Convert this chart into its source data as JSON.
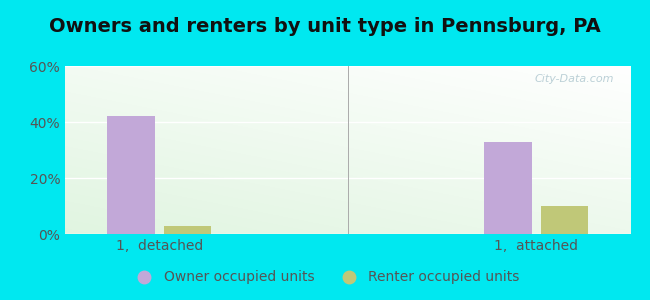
{
  "title": "Owners and renters by unit type in Pennsburg, PA",
  "categories": [
    "1,  detached",
    "1,  attached"
  ],
  "owner_values": [
    42,
    33
  ],
  "renter_values": [
    3,
    10
  ],
  "owner_color": "#c2a8d8",
  "renter_color": "#c0c878",
  "bar_width": 0.25,
  "ylim": [
    0,
    60
  ],
  "yticks": [
    0,
    20,
    40,
    60
  ],
  "ytick_labels": [
    "0%",
    "20%",
    "40%",
    "60%"
  ],
  "legend_owner": "Owner occupied units",
  "legend_renter": "Renter occupied units",
  "background_outer": "#00e8f0",
  "watermark": "City-Data.com",
  "title_fontsize": 14,
  "tick_fontsize": 10,
  "legend_fontsize": 10,
  "group_positions": [
    0.5,
    2.5
  ],
  "xlim": [
    0,
    3.0
  ]
}
